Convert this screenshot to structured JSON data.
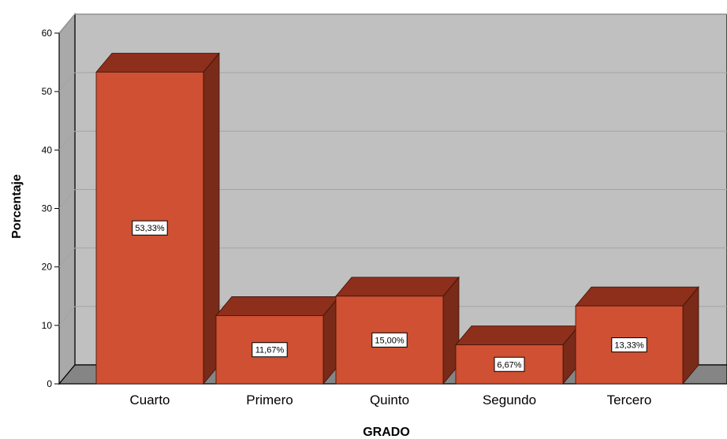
{
  "chart_data": {
    "type": "bar",
    "style": "3d",
    "categories": [
      "Cuarto",
      "Primero",
      "Quinto",
      "Segundo",
      "Tercero"
    ],
    "values": [
      53.33,
      11.67,
      15.0,
      6.67,
      13.33
    ],
    "data_labels": [
      "53,33%",
      "11,67%",
      "15,00%",
      "6,67%",
      "13,33%"
    ],
    "xlabel": "GRADO",
    "ylabel": "Porcentaje",
    "ylim": [
      0,
      60
    ],
    "yticks": [
      "0",
      "10",
      "20",
      "30",
      "40",
      "50",
      "60"
    ],
    "grid": true,
    "legend": "none",
    "colors": {
      "bar_front": "#cf5032",
      "bar_top": "#8e2f1b",
      "bar_side": "#7a2a18",
      "plot_back": "#c0c0c0",
      "plot_side": "#a9a9a9",
      "floor": "#858585",
      "gridline": "#a4a4a4"
    }
  }
}
